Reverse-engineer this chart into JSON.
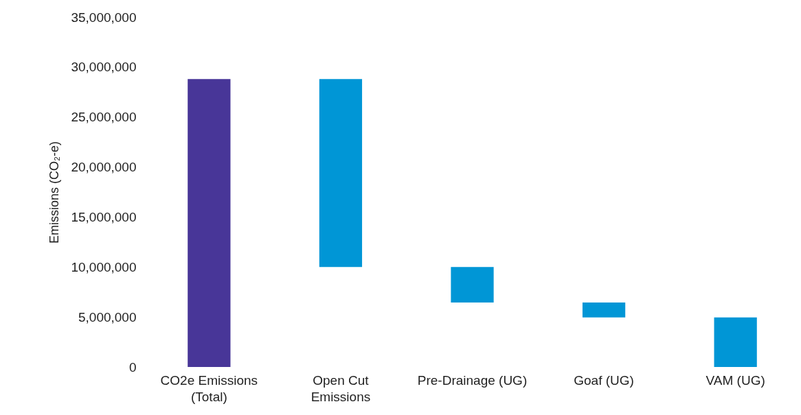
{
  "chart_data": {
    "type": "bar",
    "ylabel": "Emissions (CO₂-e)",
    "categories": [
      "CO2e Emissions\n(Total)",
      "Open Cut\nEmissions",
      "Pre-Drainage (UG)",
      "Goaf (UG)",
      "VAM (UG)"
    ],
    "values": [
      28800000,
      18800000,
      3550000,
      1500000,
      4950000
    ],
    "base": [
      0,
      10000000,
      6450000,
      4950000,
      0
    ],
    "colors": [
      "#483698",
      "#0096d6",
      "#0096d6",
      "#0096d6",
      "#0096d6"
    ],
    "ylim": [
      0,
      35000000
    ],
    "yticks": [
      0,
      {
        "value": 5000000,
        "label": "5,000,000"
      },
      {
        "value": 10000000,
        "label": "10,000,000"
      },
      {
        "value": 15000000,
        "label": "15,000,000"
      },
      {
        "value": 20000000,
        "label": "20,000,000"
      },
      {
        "value": 25000000,
        "label": "25,000,000"
      },
      {
        "value": 30000000,
        "label": "30,000,000"
      },
      {
        "value": 35000000,
        "label": "35,000,000"
      }
    ],
    "grid": false
  }
}
